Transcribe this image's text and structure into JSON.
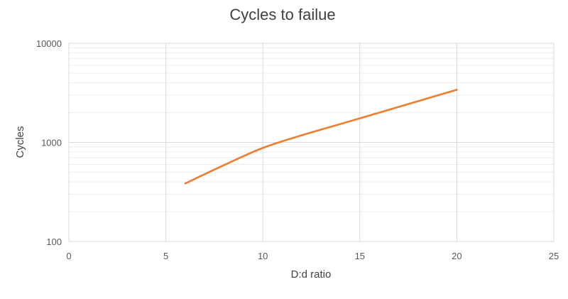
{
  "chart_data": {
    "type": "line",
    "title": "Cycles to failue",
    "xlabel": "D:d ratio",
    "ylabel": "Cycles",
    "xlim": [
      0,
      25
    ],
    "ylim": [
      100,
      10000
    ],
    "y_scale": "log",
    "x_ticks": [
      "0",
      "5",
      "10",
      "15",
      "20",
      "25"
    ],
    "y_ticks": [
      "100",
      "1000",
      "10000"
    ],
    "grid": true,
    "legend": "none",
    "series": [
      {
        "color": "#ED7D31",
        "x": [
          6,
          8,
          10,
          12,
          15,
          20
        ],
        "y": [
          385,
          590,
          880,
          1180,
          1750,
          3400
        ]
      }
    ]
  }
}
